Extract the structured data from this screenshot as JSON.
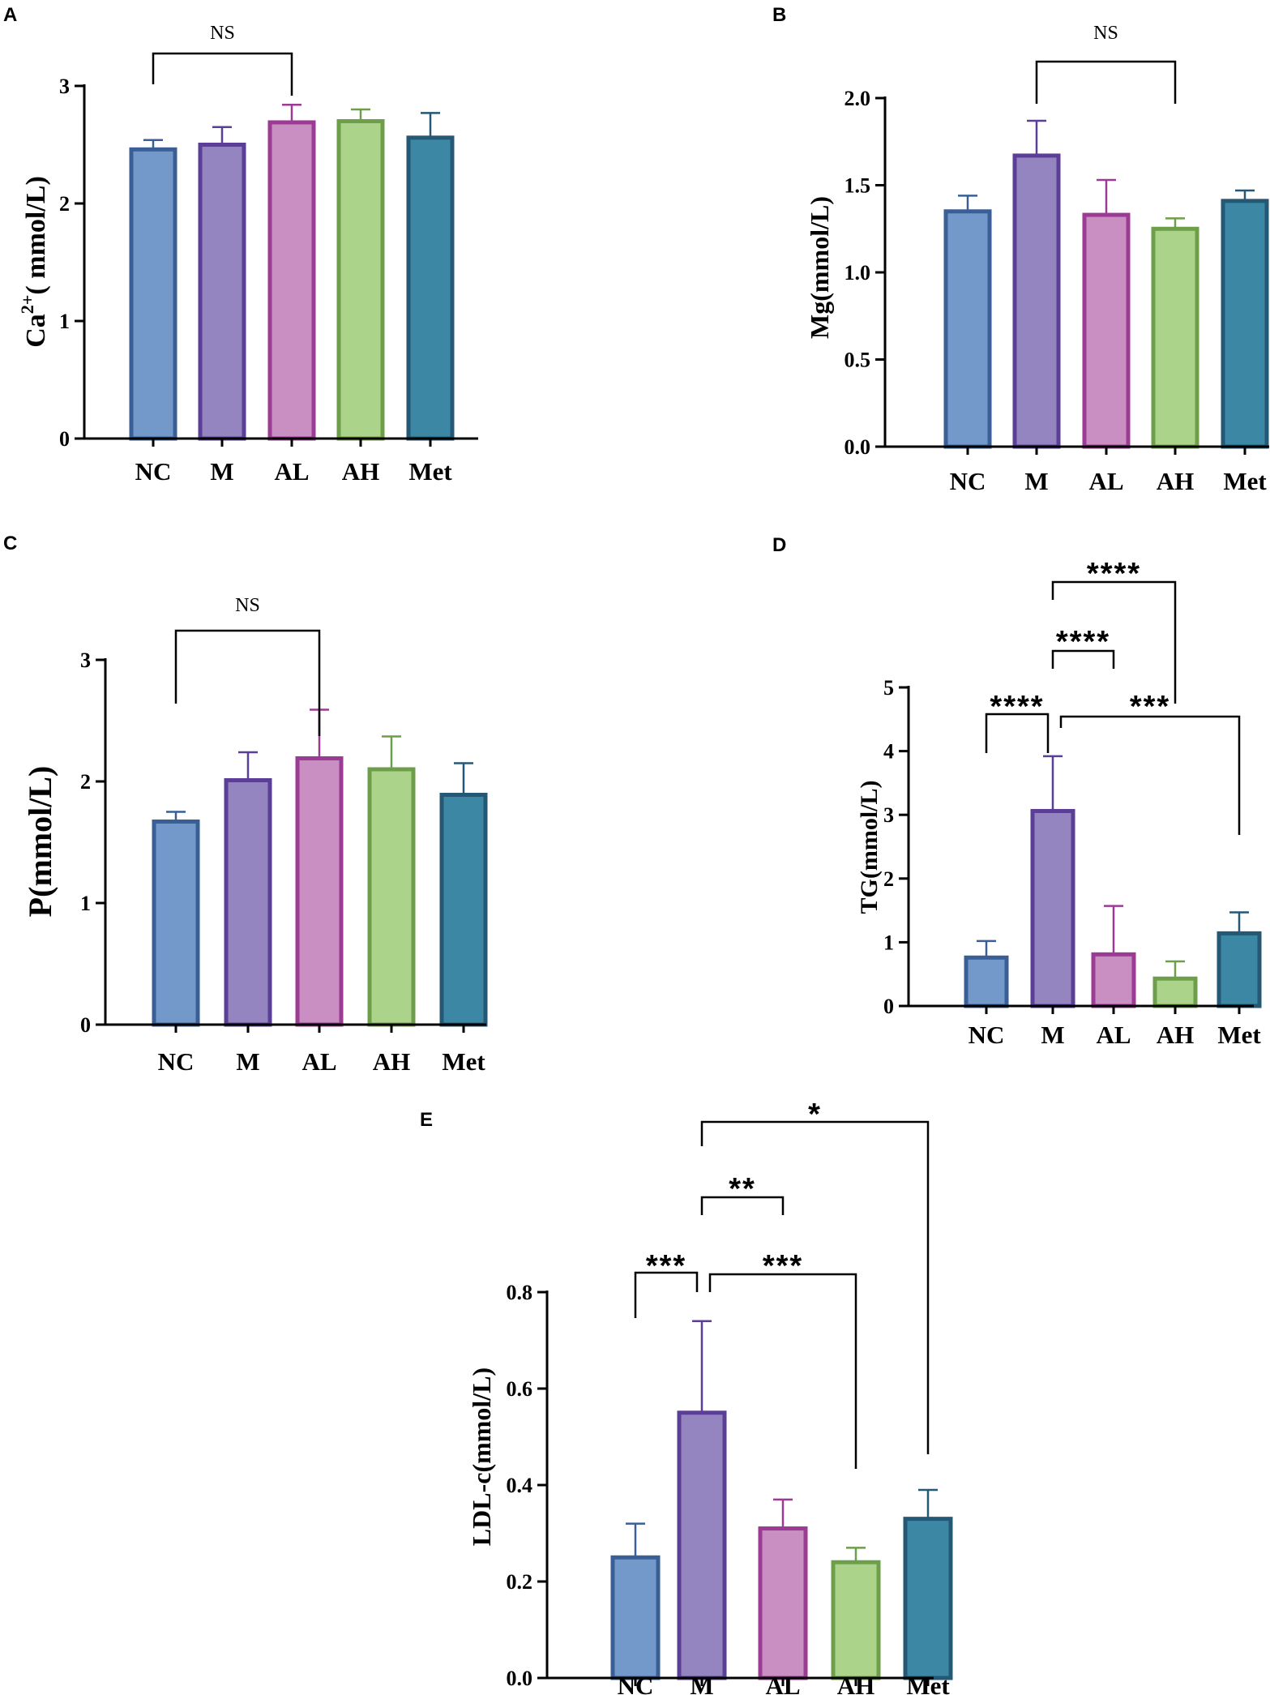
{
  "colors": {
    "NC": {
      "fill": "#7299c9",
      "stroke": "#3a5f96"
    },
    "M": {
      "fill": "#9485c0",
      "stroke": "#5b3f97"
    },
    "AL": {
      "fill": "#c98fc3",
      "stroke": "#9c3b94"
    },
    "AH": {
      "fill": "#acd38a",
      "stroke": "#6d9f4a"
    },
    "Met": {
      "fill": "#3c87a3",
      "stroke": "#255874"
    }
  },
  "chart_data": [
    {
      "panel": "A",
      "type": "bar",
      "ylabel": "Ca2+( mmol/L)",
      "ylabel_main": "Ca",
      "ylabel_sup": "2+",
      "ylabel_rest": "( mmol/L)",
      "categories": [
        "NC",
        "M",
        "AL",
        "AH",
        "Met"
      ],
      "values": [
        2.46,
        2.5,
        2.69,
        2.7,
        2.56
      ],
      "errors": [
        0.08,
        0.15,
        0.15,
        0.1,
        0.21
      ],
      "ylim": [
        0,
        3
      ],
      "yticks": [
        0,
        1,
        2,
        3
      ],
      "tick_labels": [
        "0",
        "1",
        "2",
        "3"
      ],
      "comparisons": [
        {
          "from": "NC",
          "to": "AL",
          "label": "NS"
        }
      ]
    },
    {
      "panel": "B",
      "type": "bar",
      "ylabel": "Mg(mmol/L)",
      "categories": [
        "NC",
        "M",
        "AL",
        "AH",
        "Met"
      ],
      "values": [
        1.35,
        1.67,
        1.33,
        1.25,
        1.41
      ],
      "errors": [
        0.09,
        0.2,
        0.2,
        0.06,
        0.06
      ],
      "ylim": [
        0,
        2.0
      ],
      "yticks": [
        0,
        0.5,
        1.0,
        1.5,
        2.0
      ],
      "tick_labels": [
        "0.0",
        "0.5",
        "1.0",
        "1.5",
        "2.0"
      ],
      "comparisons": [
        {
          "from": "M",
          "to": "AH",
          "label": "NS"
        }
      ]
    },
    {
      "panel": "C",
      "type": "bar",
      "ylabel": "P(mmol/L)",
      "categories": [
        "NC",
        "M",
        "AL",
        "AH",
        "Met"
      ],
      "values": [
        1.67,
        2.01,
        2.19,
        2.1,
        1.89
      ],
      "errors": [
        0.08,
        0.23,
        0.4,
        0.27,
        0.26
      ],
      "ylim": [
        0,
        3
      ],
      "yticks": [
        0,
        1,
        2,
        3
      ],
      "tick_labels": [
        "0",
        "1",
        "2",
        "3"
      ],
      "comparisons": [
        {
          "from": "NC",
          "to": "AL",
          "label": "NS"
        }
      ]
    },
    {
      "panel": "D",
      "type": "bar",
      "ylabel": "TG(mmol/L)",
      "categories": [
        "NC",
        "M",
        "AL",
        "AH",
        "Met"
      ],
      "values": [
        0.76,
        3.06,
        0.81,
        0.43,
        1.14
      ],
      "errors": [
        0.26,
        0.86,
        0.76,
        0.27,
        0.33
      ],
      "ylim": [
        0,
        5
      ],
      "yticks": [
        0,
        1,
        2,
        3,
        4,
        5
      ],
      "tick_labels": [
        "0",
        "1",
        "2",
        "3",
        "4",
        "5"
      ],
      "comparisons": [
        {
          "from": "NC",
          "to": "M",
          "label": "****"
        },
        {
          "from": "M",
          "to": "Met",
          "label": "***"
        },
        {
          "from": "M",
          "to": "AL",
          "label": "****"
        },
        {
          "from": "M",
          "to": "AH",
          "label": "****"
        }
      ]
    },
    {
      "panel": "E",
      "type": "bar",
      "ylabel": "LDL-c(mmol/L)",
      "categories": [
        "NC",
        "M",
        "AL",
        "AH",
        "Met"
      ],
      "values": [
        0.25,
        0.55,
        0.31,
        0.24,
        0.33
      ],
      "errors": [
        0.07,
        0.19,
        0.06,
        0.03,
        0.06
      ],
      "ylim": [
        0,
        0.8
      ],
      "yticks": [
        0,
        0.2,
        0.4,
        0.6,
        0.8
      ],
      "tick_labels": [
        "0.0",
        "0.2",
        "0.4",
        "0.6",
        "0.8"
      ],
      "comparisons": [
        {
          "from": "NC",
          "to": "M",
          "label": "***"
        },
        {
          "from": "M",
          "to": "AH",
          "label": "***"
        },
        {
          "from": "M",
          "to": "AL",
          "label": "**"
        },
        {
          "from": "M",
          "to": "Met",
          "label": "*"
        }
      ]
    }
  ]
}
